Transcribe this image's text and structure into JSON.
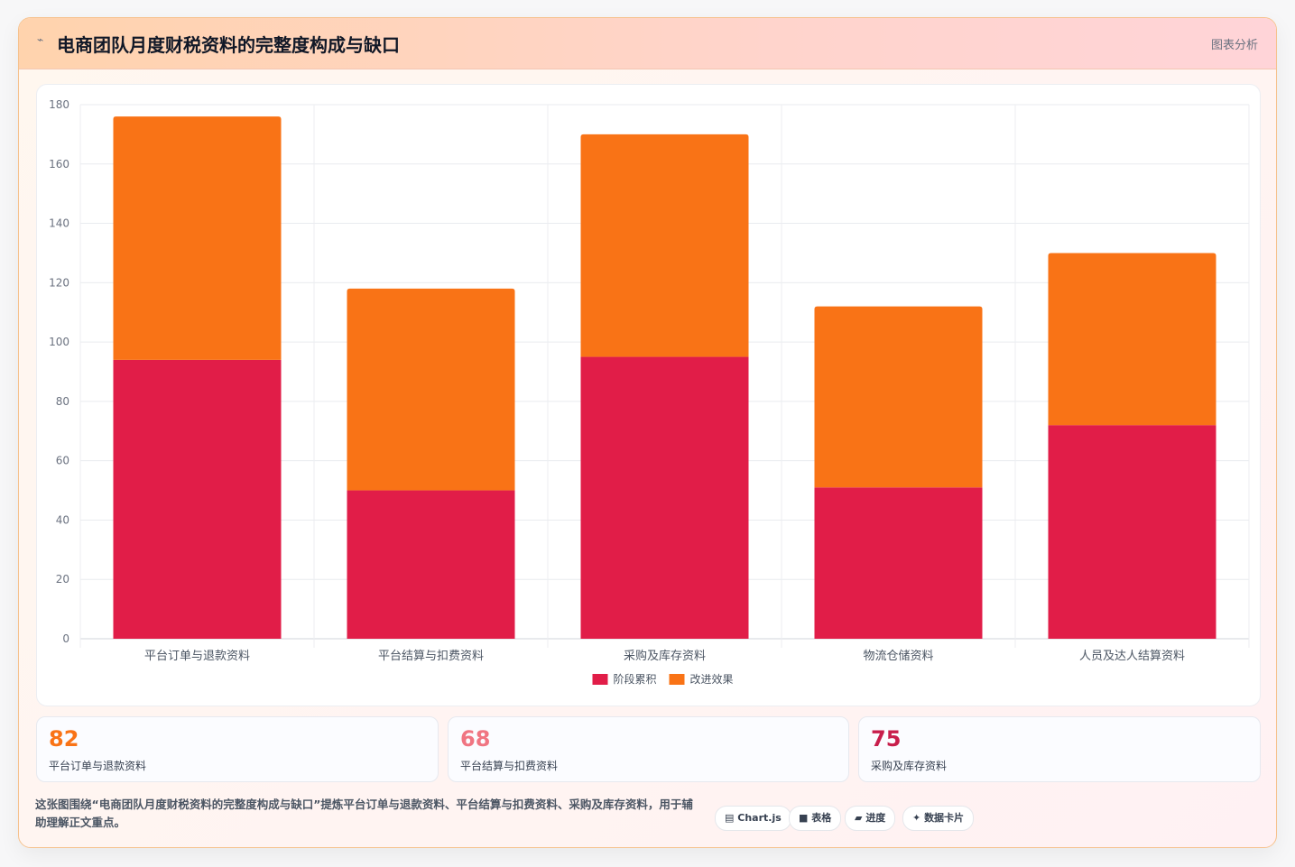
{
  "header": {
    "icon": "trend-icon",
    "title": "电商团队月度财税资料的完整度构成与缺口",
    "tag": "图表分析"
  },
  "chart_data": {
    "type": "bar",
    "stacked": true,
    "categories": [
      "平台订单与退款资料",
      "平台结算与扣费资料",
      "采购及库存资料",
      "物流仓储资料",
      "人员及达人结算资料"
    ],
    "series": [
      {
        "name": "阶段累积",
        "color": "#e11d48",
        "values": [
          94,
          50,
          95,
          51,
          72
        ]
      },
      {
        "name": "改进效果",
        "color": "#f97316",
        "values": [
          82,
          68,
          75,
          61,
          58
        ]
      }
    ],
    "ylim": [
      0,
      180
    ],
    "yticks": [
      0,
      20,
      40,
      60,
      80,
      100,
      120,
      140,
      160,
      180
    ],
    "grid": true,
    "legend": "bottom"
  },
  "stats": [
    {
      "value": "82",
      "label": "平台订单与退款资料",
      "color": "#f97316"
    },
    {
      "value": "68",
      "label": "平台结算与扣费资料",
      "color": "#f07582"
    },
    {
      "value": "75",
      "label": "采购及库存资料",
      "color": "#c81e4b"
    }
  ],
  "description": "这张图围绕“电商团队月度财税资料的完整度构成与缺口”提炼平台订单与退款资料、平台结算与扣费资料、采购及库存资料，用于辅助理解正文重点。",
  "chips": [
    {
      "icon": "chart-icon",
      "glyph": "▤",
      "label": "Chart.js"
    },
    {
      "icon": "table-icon",
      "glyph": "■",
      "label": "表格"
    },
    {
      "icon": "progress-icon",
      "glyph": "▰",
      "label": "进度"
    },
    {
      "icon": "sparkle-icon",
      "glyph": "✦",
      "label": "数据卡片"
    }
  ]
}
